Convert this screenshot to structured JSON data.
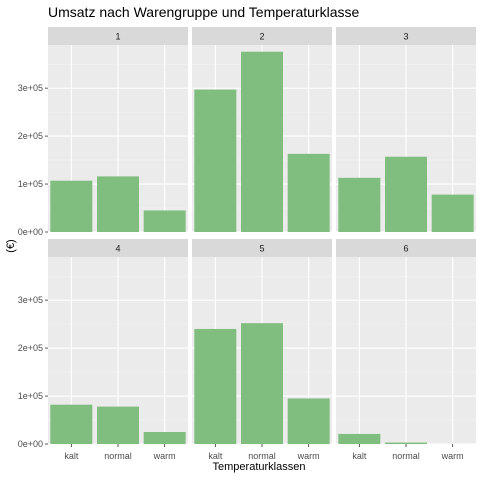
{
  "chart_data": {
    "type": "bar",
    "title": "Umsatz nach Warengruppe und Temperaturklasse",
    "xlabel": "Temperaturklassen",
    "ylabel": "(€)",
    "categories": [
      "kalt",
      "normal",
      "warm"
    ],
    "y_ticks": [
      0,
      100000,
      200000,
      300000
    ],
    "y_tick_labels": [
      "0e+00",
      "1e+05",
      "2e+05",
      "3e+05"
    ],
    "ylim": [
      0,
      390000
    ],
    "grid": true,
    "bar_color": "#80be80",
    "panel_background": "#ebebeb",
    "strip_background": "#d9d9d9",
    "facets": [
      {
        "label": "1",
        "values": [
          107000,
          116000,
          45000
        ]
      },
      {
        "label": "2",
        "values": [
          297000,
          376000,
          163000
        ]
      },
      {
        "label": "3",
        "values": [
          113000,
          157000,
          78000
        ]
      },
      {
        "label": "4",
        "values": [
          82000,
          78000,
          25000
        ]
      },
      {
        "label": "5",
        "values": [
          240000,
          252000,
          95000
        ]
      },
      {
        "label": "6",
        "values": [
          21000,
          3000,
          0
        ]
      }
    ]
  }
}
